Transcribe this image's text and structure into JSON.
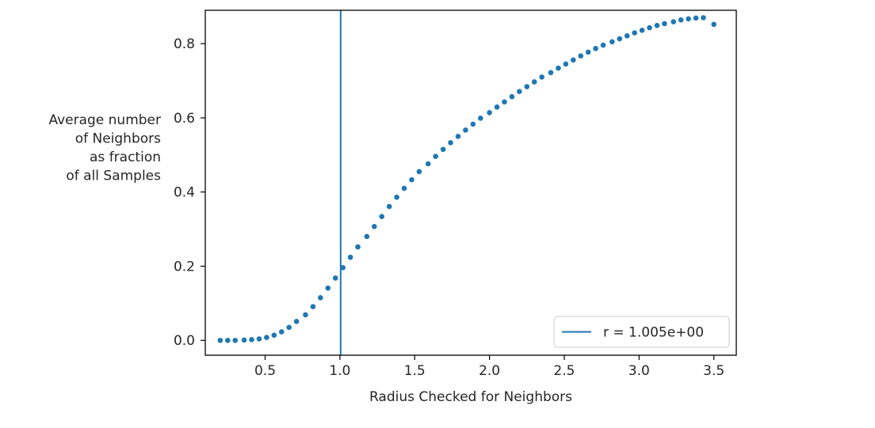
{
  "chart_data": {
    "type": "scatter",
    "xlabel": "Radius Checked for Neighbors",
    "ylabel_lines": [
      "Average number",
      "of Neighbors",
      "as fraction",
      "of all Samples"
    ],
    "xlim": [
      0.1,
      3.65
    ],
    "ylim": [
      -0.04,
      0.89
    ],
    "xticks": [
      0.5,
      1.0,
      1.5,
      2.0,
      2.5,
      3.0,
      3.5
    ],
    "xtick_labels": [
      "0.5",
      "1.0",
      "1.5",
      "2.0",
      "2.5",
      "3.0",
      "3.5"
    ],
    "yticks": [
      0.0,
      0.2,
      0.4,
      0.6,
      0.8
    ],
    "ytick_labels": [
      "0.0",
      "0.2",
      "0.4",
      "0.6",
      "0.8"
    ],
    "grid": false,
    "legend_position": "lower-right",
    "series": [
      {
        "kind": "points",
        "color": "#1f77b4",
        "x": [
          0.2,
          0.25,
          0.3,
          0.36,
          0.41,
          0.46,
          0.51,
          0.56,
          0.61,
          0.66,
          0.71,
          0.77,
          0.82,
          0.87,
          0.92,
          0.97,
          1.02,
          1.07,
          1.12,
          1.18,
          1.23,
          1.28,
          1.33,
          1.38,
          1.43,
          1.48,
          1.53,
          1.59,
          1.64,
          1.69,
          1.74,
          1.79,
          1.84,
          1.89,
          1.94,
          2.0,
          2.05,
          2.1,
          2.15,
          2.2,
          2.25,
          2.3,
          2.35,
          2.41,
          2.46,
          2.51,
          2.56,
          2.61,
          2.66,
          2.71,
          2.76,
          2.82,
          2.87,
          2.92,
          2.97,
          3.02,
          3.07,
          3.12,
          3.17,
          3.23,
          3.28,
          3.33,
          3.38,
          3.43,
          3.5
        ],
        "y": [
          0.0,
          0.0,
          0.0,
          0.001,
          0.002,
          0.004,
          0.008,
          0.014,
          0.023,
          0.035,
          0.051,
          0.069,
          0.091,
          0.115,
          0.141,
          0.168,
          0.196,
          0.224,
          0.252,
          0.28,
          0.307,
          0.334,
          0.361,
          0.386,
          0.41,
          0.433,
          0.455,
          0.476,
          0.496,
          0.515,
          0.533,
          0.55,
          0.567,
          0.583,
          0.599,
          0.614,
          0.629,
          0.643,
          0.657,
          0.671,
          0.684,
          0.697,
          0.71,
          0.722,
          0.734,
          0.745,
          0.756,
          0.767,
          0.777,
          0.787,
          0.796,
          0.805,
          0.813,
          0.821,
          0.829,
          0.836,
          0.843,
          0.849,
          0.854,
          0.859,
          0.864,
          0.867,
          0.869,
          0.87,
          0.852
        ]
      },
      {
        "kind": "vline",
        "name": "r = 1.005e+00",
        "color": "#1f77b4",
        "x": 1.005
      }
    ],
    "legend": {
      "label": "r = 1.005e+00"
    }
  }
}
